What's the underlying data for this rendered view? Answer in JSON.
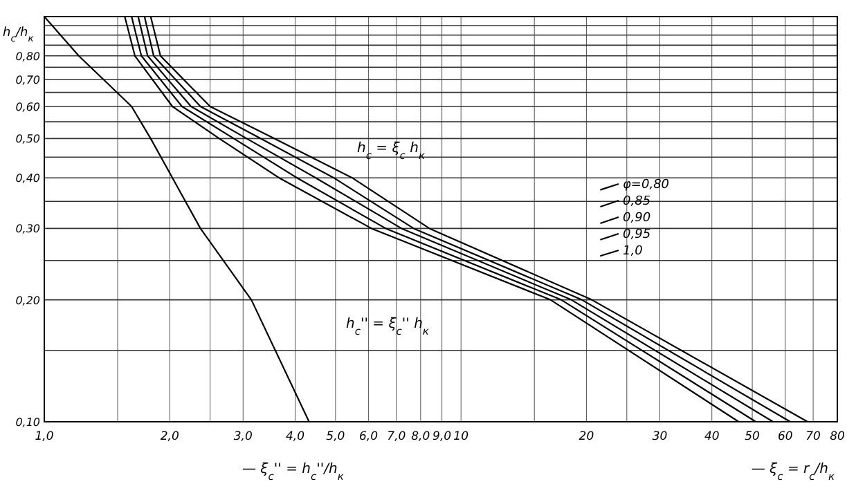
{
  "chart_data": {
    "type": "line",
    "log": "xy",
    "grid": true,
    "marker": "none",
    "line_style": "solid",
    "legend": "right",
    "ylabel": "h$_{c}$/h$_{к}$",
    "xlabel": "— ξ$_{c}$'' = h$_{c}$''/h$_{к}$",
    "xlim": [
      1,
      80
    ],
    "ylim": [
      0.1,
      1.0
    ],
    "xticks": [
      {
        "value": 1,
        "label": "1,0"
      },
      {
        "value": 1.5,
        "label": null
      },
      {
        "value": 2,
        "label": "2,0"
      },
      {
        "value": 2.5,
        "label": null
      },
      {
        "value": 3,
        "label": "3,0"
      },
      {
        "value": 4,
        "label": "4,0"
      },
      {
        "value": 5,
        "label": "5,0"
      },
      {
        "value": 6,
        "label": "6,0"
      },
      {
        "value": 7,
        "label": "7,0"
      },
      {
        "value": 8,
        "label": "8,0"
      },
      {
        "value": 9,
        "label": "9,0"
      },
      10,
      {
        "value": 15,
        "label": null
      },
      20,
      {
        "value": 25,
        "label": null
      },
      30,
      40,
      50,
      60,
      70,
      80
    ],
    "yticks": [
      {
        "value": 0.1,
        "label": "0,10"
      },
      {
        "value": 0.15,
        "label": null
      },
      {
        "value": 0.2,
        "label": "0,20"
      },
      {
        "value": 0.25,
        "label": null
      },
      {
        "value": 0.3,
        "label": "0,30"
      },
      {
        "value": 0.35,
        "label": null
      },
      {
        "value": 0.4,
        "label": "0,40"
      },
      {
        "value": 0.45,
        "label": null
      },
      {
        "value": 0.5,
        "label": "0,50"
      },
      {
        "value": 0.55,
        "label": null
      },
      {
        "value": 0.6,
        "label": "0,60"
      },
      {
        "value": 0.65,
        "label": null
      },
      {
        "value": 0.7,
        "label": "0,70"
      },
      {
        "value": 0.75,
        "label": null
      },
      {
        "value": 0.8,
        "label": "0,80"
      },
      {
        "value": 0.85,
        "label": null
      },
      {
        "value": 0.9,
        "label": null
      },
      {
        "value": 0.95,
        "label": null
      },
      {
        "value": 1.0,
        "label": null
      }
    ],
    "series": [
      {
        "color": "#000000",
        "x": [
          1.0,
          1.21,
          1.62,
          1.8,
          2.03,
          2.37,
          3.14,
          4.32
        ],
        "values": [
          1.0,
          0.8,
          0.6,
          0.5,
          0.4,
          0.3,
          0.2,
          0.1
        ]
      },
      {
        "name": "φ=0,80",
        "color": "#000000",
        "x": [
          1.8,
          1.9,
          2.5,
          3.57,
          5.48,
          8.4,
          20.6,
          67.9
        ],
        "values": [
          1.0,
          0.8,
          0.6,
          0.5,
          0.4,
          0.3,
          0.2,
          0.1
        ]
      },
      {
        "name": "0,85",
        "color": "#000000",
        "x": [
          1.74,
          1.83,
          2.37,
          3.31,
          4.95,
          7.7,
          19.5,
          61.7
        ],
        "values": [
          1.0,
          0.8,
          0.6,
          0.5,
          0.4,
          0.3,
          0.2,
          0.1
        ]
      },
      {
        "name": "0,90",
        "color": "#000000",
        "x": [
          1.68,
          1.77,
          2.25,
          3.06,
          4.48,
          7.2,
          18.4,
          56.1
        ],
        "values": [
          1.0,
          0.8,
          0.6,
          0.5,
          0.4,
          0.3,
          0.2,
          0.1
        ]
      },
      {
        "name": "0,95",
        "color": "#000000",
        "x": [
          1.62,
          1.71,
          2.14,
          2.85,
          4.04,
          6.6,
          17.4,
          51.0
        ],
        "values": [
          1.0,
          0.8,
          0.6,
          0.5,
          0.4,
          0.3,
          0.2,
          0.1
        ]
      },
      {
        "name": "1,0",
        "color": "#000000",
        "x": [
          1.56,
          1.65,
          2.03,
          2.63,
          3.66,
          6.1,
          16.4,
          46.4
        ],
        "values": [
          1.0,
          0.8,
          0.6,
          0.5,
          0.4,
          0.3,
          0.2,
          0.1
        ]
      }
    ],
    "annotations": [
      "h$_{c}$ = ξ$_{c}$ h$_{к}$",
      "h$_{c}$'' = ξ$_{c}$'' h$_{к}$",
      "— ξ$_{c}$ = r$_{c}$/h$_{к}$"
    ]
  }
}
